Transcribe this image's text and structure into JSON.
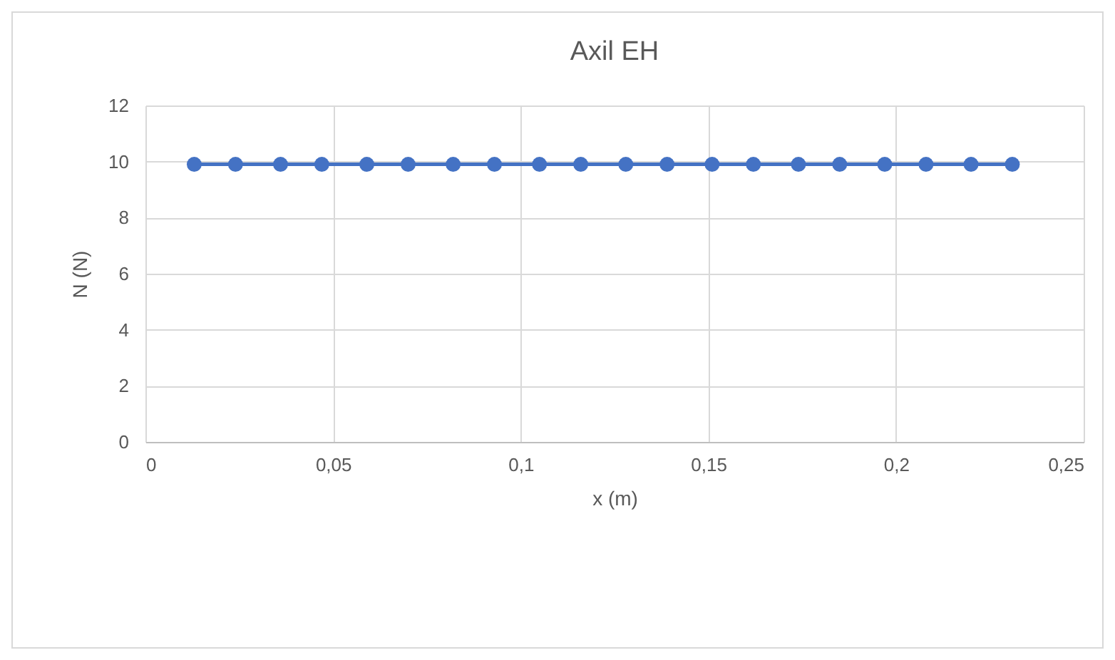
{
  "chart_data": {
    "type": "line",
    "title": "Axil EH",
    "xlabel": "x (m)",
    "ylabel": "N (N)",
    "x": [
      0.013,
      0.024,
      0.036,
      0.047,
      0.059,
      0.07,
      0.082,
      0.093,
      0.105,
      0.116,
      0.128,
      0.139,
      0.151,
      0.162,
      0.174,
      0.185,
      0.197,
      0.208,
      0.22,
      0.231
    ],
    "series": [
      {
        "color": "#4472c4",
        "values": [
          9.9,
          9.9,
          9.9,
          9.9,
          9.9,
          9.9,
          9.9,
          9.9,
          9.9,
          9.9,
          9.9,
          9.9,
          9.9,
          9.9,
          9.9,
          9.9,
          9.9,
          9.9,
          9.9,
          9.9
        ]
      }
    ],
    "xlim": [
      0,
      0.25
    ],
    "xticks": [
      0,
      {
        "value": 0.05,
        "label": "0,05"
      },
      {
        "value": 0.1,
        "label": "0,1"
      },
      {
        "value": 0.15,
        "label": "0,15"
      },
      {
        "value": 0.2,
        "label": "0,2"
      },
      {
        "value": 0.25,
        "label": "0,25"
      }
    ],
    "ylim": [
      0,
      12
    ],
    "yticks": [
      0,
      2,
      4,
      6,
      8,
      10,
      12
    ],
    "grid": true,
    "marker": "circle",
    "line_style": "solid"
  }
}
